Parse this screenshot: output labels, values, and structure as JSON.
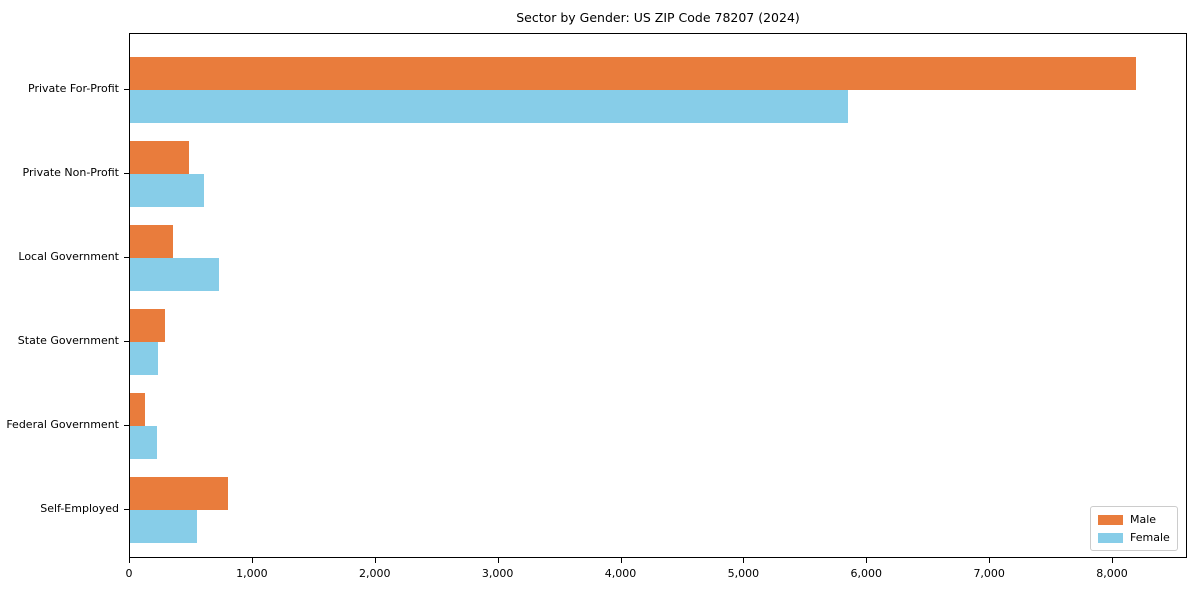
{
  "page": {
    "background_color": "#ffffff",
    "text_color": "#000000",
    "axis_color": "#000000",
    "legend_border_color": "#cccccc"
  },
  "chart_data": {
    "type": "bar",
    "orientation": "horizontal",
    "title": "Sector by Gender: US ZIP Code 78207 (2024)",
    "categories": [
      "Private For-Profit",
      "Private Non-Profit",
      "Local Government",
      "State Government",
      "Federal Government",
      "Self-Employed"
    ],
    "series": [
      {
        "name": "Male",
        "color": "#E97C3C",
        "values": [
          8190,
          480,
          350,
          285,
          120,
          795
        ]
      },
      {
        "name": "Female",
        "color": "#87CDE8",
        "values": [
          5840,
          600,
          720,
          230,
          220,
          545
        ]
      }
    ],
    "xlabel": "",
    "ylabel": "",
    "xlim": [
      0,
      8610
    ],
    "xticks": [
      0,
      1000,
      2000,
      3000,
      4000,
      5000,
      6000,
      7000,
      8000
    ],
    "xtick_labels": [
      "0",
      "1,000",
      "2,000",
      "3,000",
      "4,000",
      "5,000",
      "6,000",
      "7,000",
      "8,000"
    ],
    "grid": false,
    "legend_position": "lower right"
  }
}
